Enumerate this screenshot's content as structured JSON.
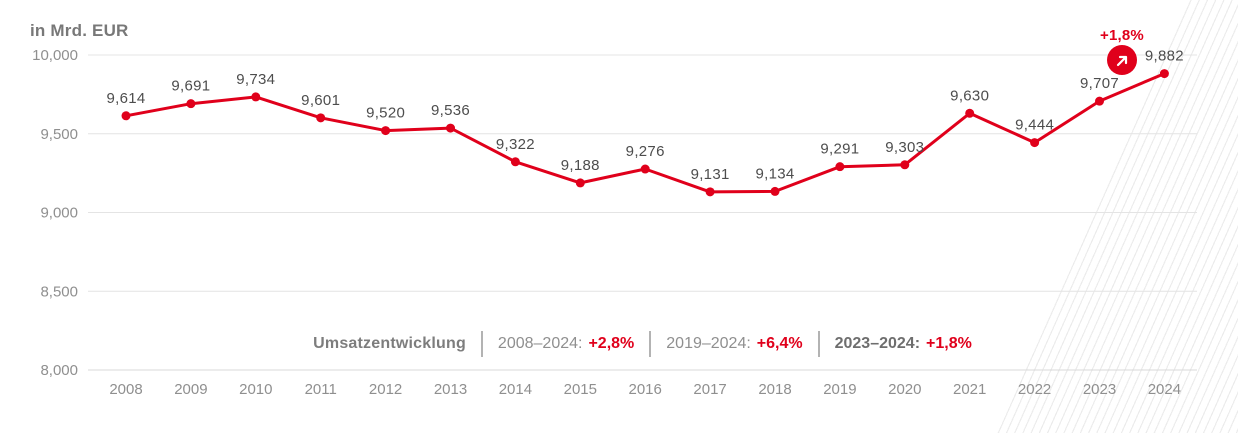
{
  "unit_title": "in Mrd. EUR",
  "badge": {
    "label": "+1,8%",
    "icon": "trend-up-arrow-icon"
  },
  "chart_data": {
    "type": "line",
    "title": "Umsatzentwicklung",
    "ylabel": "in Mrd. EUR",
    "x": [
      2008,
      2009,
      2010,
      2011,
      2012,
      2013,
      2014,
      2015,
      2016,
      2017,
      2018,
      2019,
      2020,
      2021,
      2022,
      2023,
      2024
    ],
    "values": [
      9614,
      9691,
      9734,
      9601,
      9520,
      9536,
      9322,
      9188,
      9276,
      9131,
      9134,
      9291,
      9303,
      9630,
      9444,
      9707,
      9882
    ],
    "point_labels": [
      "9,614",
      "9,691",
      "9,734",
      "9,601",
      "9,520",
      "9,536",
      "9,322",
      "9,188",
      "9,276",
      "9,131",
      "9,134",
      "9,291",
      "9,303",
      "9,630",
      "9,444",
      "9,707",
      "9,882"
    ],
    "yticks": [
      10000,
      9500,
      9000,
      8500,
      8000
    ],
    "ytick_labels": [
      "10,000",
      "9,500",
      "9,000",
      "8,500",
      "8,000"
    ],
    "ylim": [
      8000,
      10000
    ],
    "grid": true,
    "legend": "none",
    "line_color": "#e0001b",
    "annotation": {
      "text": "+1,8%",
      "at_x": 2024
    }
  },
  "summary": {
    "title": "Umsatzentwicklung",
    "items": [
      {
        "range": "2008–2024:",
        "value": "+2,8%"
      },
      {
        "range": "2019–2024:",
        "value": "+6,4%"
      },
      {
        "range": "2023–2024:",
        "value": "+1,8%"
      }
    ]
  },
  "colors": {
    "accent_red": "#e0001b",
    "point_label_gray": "#4d4d4d",
    "axis_gray": "#8f8f8f",
    "grid_gray": "#e4e4e4"
  }
}
